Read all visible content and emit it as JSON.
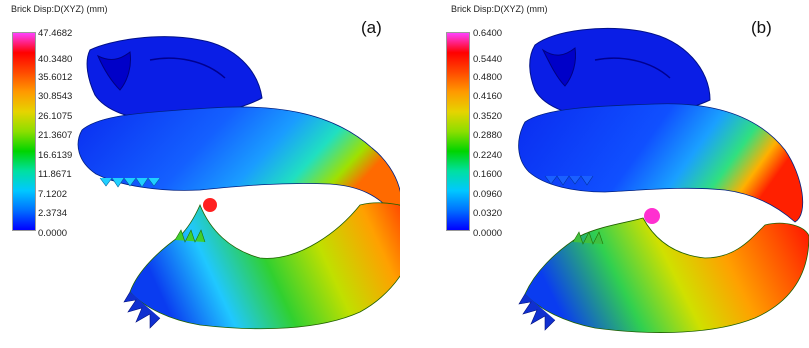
{
  "panels": [
    {
      "label": "(a)",
      "scale_title": "Brick Disp:D(XYZ) (mm)",
      "ticks": [
        "47.4682",
        "40.3480",
        "35.6012",
        "30.8543",
        "26.1075",
        "21.3607",
        "16.6139",
        "11.8671",
        "7.1202",
        "2.3734",
        "0.0000"
      ]
    },
    {
      "label": "(b)",
      "scale_title": "Brick Disp:D(XYZ) (mm)",
      "ticks": [
        "0.6400",
        "0.5440",
        "0.4800",
        "0.4160",
        "0.3520",
        "0.2880",
        "0.2240",
        "0.1600",
        "0.0960",
        "0.0320",
        "0.0000"
      ]
    }
  ],
  "colorbar_colors": [
    "#ff40ff",
    "#ff0000",
    "#ff4a00",
    "#ff9a00",
    "#e6d400",
    "#8cde00",
    "#00d400",
    "#00e0a0",
    "#00c8ff",
    "#0070ff",
    "#0000ff"
  ]
}
